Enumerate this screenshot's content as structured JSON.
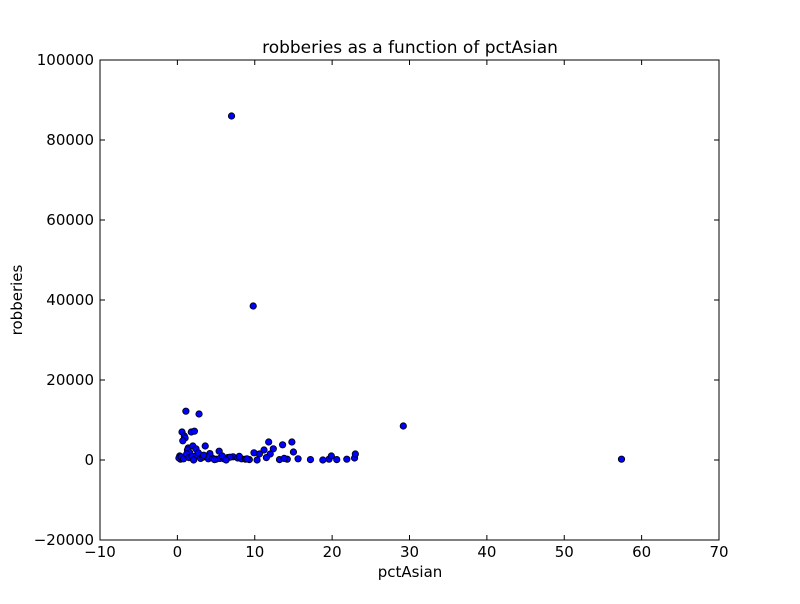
{
  "chart_data": {
    "type": "scatter",
    "title": "robberies as a function of pctAsian",
    "xlabel": "pctAsian",
    "ylabel": "robberies",
    "xlim": [
      -10,
      70
    ],
    "ylim": [
      -20000,
      100000
    ],
    "xticks": [
      -10,
      0,
      10,
      20,
      30,
      40,
      50,
      60,
      70
    ],
    "yticks": [
      -20000,
      0,
      20000,
      40000,
      60000,
      80000,
      100000
    ],
    "xtick_labels": [
      "−10",
      "0",
      "10",
      "20",
      "30",
      "40",
      "50",
      "60",
      "70"
    ],
    "ytick_labels": [
      "−20000",
      "0",
      "20000",
      "40000",
      "60000",
      "80000",
      "100000"
    ],
    "grid": false,
    "marker_color": "#0000ff",
    "marker_edge": "#000000",
    "x": [
      7.0,
      9.8,
      29.2,
      57.4,
      1.1,
      2.8,
      0.6,
      0.9,
      1.8,
      2.2,
      1.0,
      0.7,
      0.3,
      0.4,
      1.4,
      1.3,
      2.0,
      2.4,
      1.6,
      3.6,
      0.2,
      0.5,
      0.8,
      1.2,
      1.5,
      1.9,
      2.5,
      3.0,
      3.3,
      4.0,
      4.5,
      5.0,
      5.5,
      6.0,
      6.5,
      7.2,
      7.8,
      8.3,
      8.8,
      9.3,
      11.8,
      11.2,
      10.6,
      12.4,
      13.6,
      14.8,
      15.0,
      14.2,
      12.0,
      13.2,
      15.6,
      17.2,
      18.8,
      19.6,
      20.6,
      21.9,
      22.9,
      23.0,
      19.9,
      5.4,
      4.2,
      3.8,
      2.7,
      6.8,
      9.9,
      10.3,
      11.5,
      13.8,
      8.0,
      5.8,
      6.3,
      3.4,
      2.1,
      4.8,
      9.0
    ],
    "y": [
      86000,
      38500,
      8500,
      200,
      12200,
      11500,
      7000,
      6000,
      7000,
      7200,
      5500,
      4800,
      1000,
      200,
      3000,
      2500,
      3500,
      2800,
      1800,
      3500,
      500,
      800,
      300,
      1500,
      600,
      900,
      1200,
      400,
      700,
      300,
      500,
      200,
      400,
      300,
      600,
      800,
      500,
      300,
      200,
      100,
      4500,
      2500,
      1500,
      2800,
      3800,
      4500,
      2000,
      200,
      1500,
      100,
      300,
      100,
      0,
      200,
      100,
      200,
      500,
      1500,
      1000,
      2200,
      1600,
      900,
      1800,
      700,
      1800,
      0,
      600,
      400,
      900,
      1000,
      0,
      1200,
      0,
      100,
      300
    ]
  }
}
